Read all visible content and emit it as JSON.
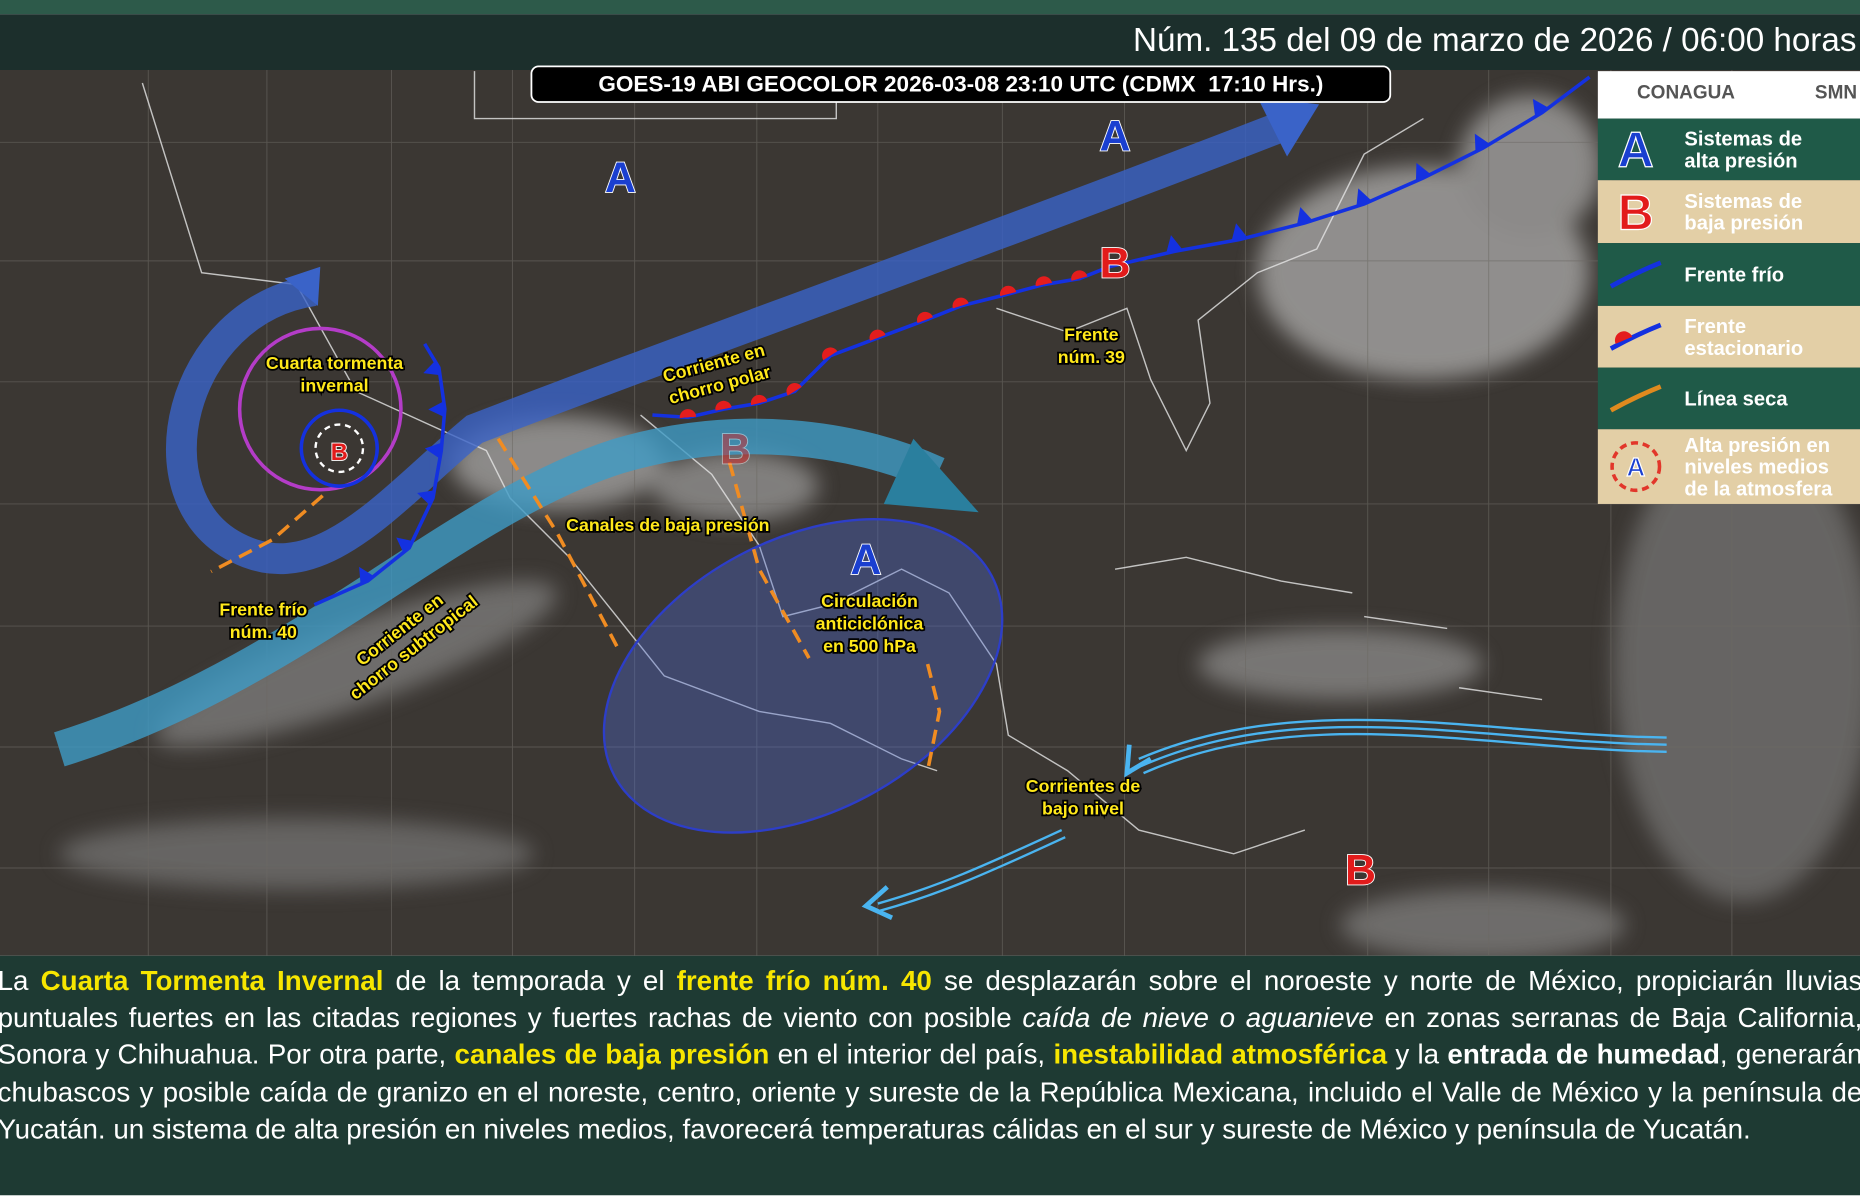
{
  "header": {
    "issue": "Núm. 135 del 09 de marzo de 2026 / 06:00 horas"
  },
  "satellite_caption": "GOES-19 ABI GEOCOLOR 2026-03-08 23:10 UTC (CDMX  17:10 Hrs.)",
  "logos": [
    "CONAGUA",
    "SMN"
  ],
  "legend": [
    {
      "symbol": "A",
      "label": [
        "Sistemas de",
        "alta presión"
      ]
    },
    {
      "symbol": "B",
      "label": [
        "Sistemas de",
        "baja presión"
      ]
    },
    {
      "label": [
        "Frente frío"
      ]
    },
    {
      "label": [
        "Frente",
        "estacionario"
      ]
    },
    {
      "label": [
        "Línea seca"
      ]
    },
    {
      "symbol": "A",
      "label": [
        "Alta presión en",
        "niveles medios",
        "de la atmosfera"
      ]
    }
  ],
  "map_labels": [
    {
      "lines": [
        "Cuarta tormenta",
        "invernal"
      ]
    },
    {
      "lines": [
        "Frente frío",
        "núm. 40"
      ]
    },
    {
      "lines": [
        "Corriente en",
        "chorro subtropical"
      ]
    },
    {
      "lines": [
        "Canales de baja presión"
      ]
    },
    {
      "lines": [
        "Corriente en",
        "chorro polar"
      ]
    },
    {
      "lines": [
        "Frente",
        "núm. 39"
      ]
    },
    {
      "lines": [
        "Circulación",
        "anticiclónica",
        "en 500 hPa"
      ]
    },
    {
      "lines": [
        "Corrientes de",
        "bajo nivel"
      ]
    }
  ],
  "pressure_centers": [
    "A",
    "A",
    "A",
    "B",
    "B",
    "B",
    "B"
  ],
  "summary": [
    "La ",
    "Cuarta Tormenta Invernal",
    " de la temporada y el ",
    "frente frío núm. 40",
    " se desplazarán sobre el noroeste y norte de México, propiciarán lluvias puntuales fuertes en las citadas regiones y fuertes rachas de viento con posible ",
    "caída de nieve o aguanieve",
    " en zonas serranas de Baja California, Sonora y Chihuahua. Por otra parte, ",
    "canales de baja presión",
    " en el interior del país, ",
    "inestabilidad atmosférica",
    " y la ",
    "entrada de humedad",
    ", generarán chubascos y posible caída de granizo en el noreste, centro, oriente y sureste de la República Mexicana, incluido el Valle de México y la península de Yucatán. un sistema de alta presión en niveles medios, favorecerá temperaturas cálidas en el sur y sureste de México y península de Yucatán."
  ]
}
